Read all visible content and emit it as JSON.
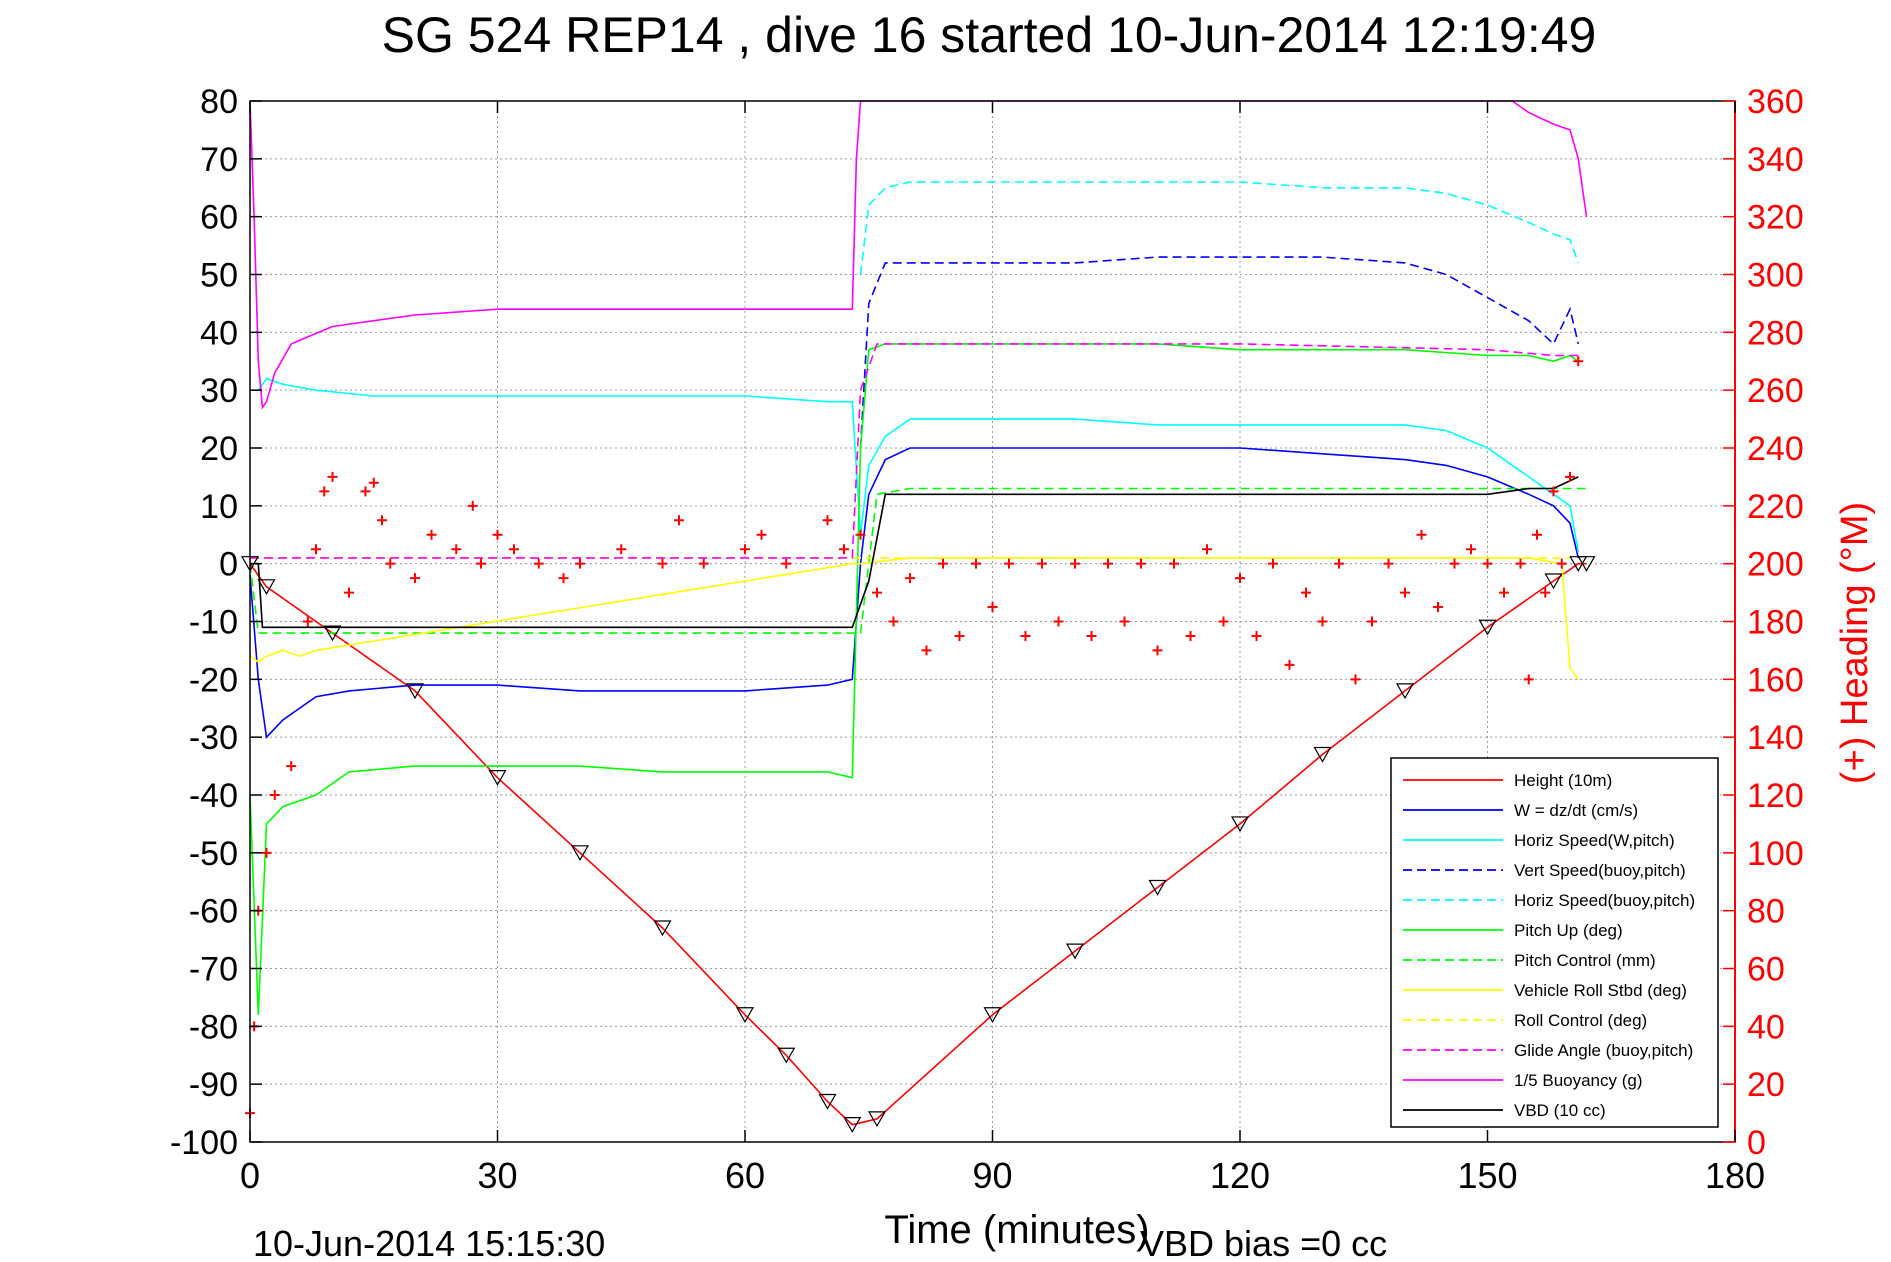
{
  "chart_data": {
    "type": "line",
    "title": "SG 524   REP14  , dive 16 started 10-Jun-2014 12:19:49",
    "xlabel": "Time (minutes)",
    "ylabel_right": "(+) Heading (°M)",
    "footer_left": "10-Jun-2014 15:15:30",
    "footer_right": "VBD bias =0 cc",
    "xlim": [
      0,
      180
    ],
    "ylim": [
      -100,
      80
    ],
    "ylim_right": [
      0,
      360
    ],
    "x_ticks": [
      "0",
      "30",
      "60",
      "90",
      "120",
      "150",
      "180"
    ],
    "y_ticks": [
      "80",
      "70",
      "60",
      "50",
      "40",
      "30",
      "20",
      "10",
      "0",
      "-10",
      "-20",
      "-30",
      "-40",
      "-50",
      "-60",
      "-70",
      "-80",
      "-90",
      "-100"
    ],
    "y_ticks_right": [
      "360",
      "340",
      "320",
      "300",
      "280",
      "260",
      "240",
      "220",
      "200",
      "180",
      "160",
      "140",
      "120",
      "100",
      "80",
      "60",
      "40",
      "20",
      "0"
    ],
    "grid": true,
    "legend_position": "bottom-right",
    "colors": {
      "red": "#ff0000",
      "blue": "#0000ff",
      "cyan": "#00ffff",
      "green": "#00ff00",
      "yellow": "#ffff00",
      "magenta": "#ff00ff",
      "black": "#000000",
      "grid": "#9a9a9a"
    },
    "series": [
      {
        "name": "Height (10m)",
        "color": "#ff0000",
        "style": "solid",
        "x": [
          0,
          2,
          10,
          20,
          30,
          40,
          50,
          60,
          65,
          70,
          73,
          76,
          90,
          100,
          110,
          120,
          130,
          140,
          150,
          158,
          161,
          162
        ],
        "y": [
          0,
          -4,
          -12,
          -22,
          -37,
          -50,
          -63,
          -78,
          -85,
          -93,
          -97,
          -96,
          -78,
          -67,
          -56,
          -45,
          -33,
          -22,
          -11,
          -3,
          0,
          0
        ]
      },
      {
        "name": "W = dz/dt (cm/s)",
        "color": "#0000ff",
        "style": "solid",
        "x": [
          0,
          1,
          2,
          4,
          8,
          12,
          20,
          30,
          40,
          50,
          60,
          70,
          73,
          74,
          75,
          77,
          80,
          90,
          100,
          110,
          120,
          130,
          140,
          145,
          150,
          155,
          158,
          160,
          161
        ],
        "y": [
          -2,
          -20,
          -30,
          -27,
          -23,
          -22,
          -21,
          -21,
          -22,
          -22,
          -22,
          -21,
          -20,
          0,
          12,
          18,
          20,
          20,
          20,
          20,
          20,
          19,
          18,
          17,
          15,
          12,
          10,
          7,
          1
        ]
      },
      {
        "name": "Horiz Speed(W,pitch)",
        "color": "#00ffff",
        "style": "solid",
        "x": [
          0,
          1,
          2,
          4,
          8,
          15,
          30,
          45,
          60,
          70,
          73,
          74,
          75,
          77,
          80,
          90,
          100,
          110,
          120,
          130,
          140,
          145,
          150,
          155,
          158,
          160,
          161
        ],
        "y": [
          30,
          30,
          32,
          31,
          30,
          29,
          29,
          29,
          29,
          28,
          28,
          5,
          17,
          22,
          25,
          25,
          25,
          24,
          24,
          24,
          24,
          23,
          20,
          15,
          12,
          10,
          2
        ]
      },
      {
        "name": "Vert Speed(buoy,pitch)",
        "color": "#0000ff",
        "style": "dashed",
        "x": [
          74,
          75,
          77,
          80,
          90,
          100,
          110,
          120,
          130,
          140,
          145,
          150,
          155,
          158,
          160,
          161
        ],
        "y": [
          20,
          45,
          52,
          52,
          52,
          52,
          53,
          53,
          53,
          52,
          50,
          46,
          42,
          38,
          44,
          38
        ]
      },
      {
        "name": "Horiz Speed(buoy,pitch)",
        "color": "#00ffff",
        "style": "dashed",
        "x": [
          74,
          75,
          77,
          80,
          90,
          100,
          110,
          120,
          130,
          140,
          145,
          150,
          155,
          158,
          160,
          161
        ],
        "y": [
          50,
          62,
          65,
          66,
          66,
          66,
          66,
          66,
          65,
          65,
          64,
          62,
          59,
          57,
          56,
          52
        ]
      },
      {
        "name": "Pitch Up (deg)",
        "color": "#00ff00",
        "style": "solid",
        "x": [
          0,
          1,
          2,
          4,
          8,
          12,
          20,
          30,
          40,
          50,
          60,
          70,
          73,
          74,
          75,
          77,
          80,
          90,
          100,
          110,
          120,
          130,
          140,
          150,
          155,
          158,
          160,
          161
        ],
        "y": [
          -40,
          -78,
          -45,
          -42,
          -40,
          -36,
          -35,
          -35,
          -35,
          -36,
          -36,
          -36,
          -37,
          20,
          37,
          38,
          38,
          38,
          38,
          38,
          37,
          37,
          37,
          36,
          36,
          35,
          36,
          35
        ]
      },
      {
        "name": "Pitch Control (mm)",
        "color": "#00ff00",
        "style": "dashed",
        "x": [
          0,
          1,
          2,
          30,
          60,
          73,
          74,
          76,
          80,
          100,
          120,
          140,
          150,
          158,
          162
        ],
        "y": [
          0,
          -12,
          -12,
          -12,
          -12,
          -12,
          -12,
          12,
          13,
          13,
          13,
          13,
          13,
          13,
          13
        ]
      },
      {
        "name": "Vehicle Roll Stbd (deg)",
        "color": "#ffff00",
        "style": "solid",
        "x": [
          0,
          1,
          2,
          4,
          6,
          8,
          73,
          74,
          80,
          120,
          155,
          159,
          160,
          161
        ],
        "y": [
          -16,
          -17,
          -16,
          -15,
          -16,
          -15,
          0,
          0,
          1,
          1,
          1,
          0,
          -18,
          -20
        ]
      },
      {
        "name": "Roll Control (deg)",
        "color": "#ffff00",
        "style": "dashed",
        "x": [
          0,
          10,
          20,
          30,
          60,
          73,
          74,
          100,
          120,
          150,
          160
        ],
        "y": [
          1,
          1,
          1,
          1,
          1,
          1,
          1,
          1,
          1,
          1,
          1
        ]
      },
      {
        "name": "Glide Angle (buoy,pitch)",
        "color": "#ff00ff",
        "style": "dashed",
        "x": [
          0,
          30,
          60,
          73,
          74,
          76,
          90,
          120,
          150,
          158,
          161
        ],
        "y": [
          1,
          1,
          1,
          1,
          30,
          38,
          38,
          38,
          37,
          36,
          36
        ]
      },
      {
        "name": "1/5 Buoyancy (g)",
        "color": "#ff00ff",
        "style": "solid",
        "x": [
          0,
          0.5,
          1,
          1.5,
          2,
          3,
          5,
          10,
          20,
          30,
          40,
          50,
          60,
          70,
          73,
          73.5,
          74,
          75,
          153,
          155,
          158,
          160,
          161,
          162
        ],
        "y": [
          80,
          60,
          35,
          27,
          28,
          33,
          38,
          41,
          43,
          44,
          44,
          44,
          44,
          44,
          44,
          70,
          80,
          80,
          80,
          78,
          76,
          75,
          70,
          60
        ]
      },
      {
        "name": "VBD (10 cc)",
        "color": "#000000",
        "style": "solid",
        "x": [
          0,
          1,
          1.5,
          30,
          60,
          73,
          75,
          77,
          100,
          120,
          145,
          150,
          155,
          158,
          161
        ],
        "y": [
          0,
          0,
          -11,
          -11,
          -11,
          -11,
          -3,
          12,
          12,
          12,
          12,
          12,
          13,
          13,
          15
        ]
      },
      {
        "name": "Heading",
        "color": "#ff0000",
        "style": "markers",
        "axis": "right",
        "x": [
          0,
          0.5,
          1,
          2,
          3,
          5,
          7,
          8,
          9,
          10,
          12,
          14,
          15,
          16,
          17,
          20,
          22,
          25,
          27,
          28,
          30,
          32,
          35,
          38,
          40,
          45,
          50,
          52,
          55,
          60,
          62,
          65,
          70,
          72,
          74,
          76,
          78,
          80,
          82,
          84,
          86,
          88,
          90,
          92,
          94,
          96,
          98,
          100,
          102,
          104,
          106,
          108,
          110,
          112,
          114,
          116,
          118,
          120,
          122,
          124,
          126,
          128,
          130,
          132,
          134,
          136,
          138,
          140,
          142,
          144,
          146,
          148,
          150,
          152,
          154,
          155,
          156,
          157,
          158,
          159,
          160,
          161
        ],
        "y": [
          10,
          40,
          80,
          100,
          120,
          130,
          180,
          205,
          225,
          230,
          190,
          225,
          228,
          215,
          200,
          195,
          210,
          205,
          220,
          200,
          210,
          205,
          200,
          195,
          200,
          205,
          200,
          215,
          200,
          205,
          210,
          200,
          215,
          205,
          210,
          190,
          180,
          195,
          170,
          200,
          175,
          200,
          185,
          200,
          175,
          200,
          180,
          200,
          175,
          200,
          180,
          200,
          170,
          200,
          175,
          205,
          180,
          195,
          175,
          200,
          165,
          190,
          180,
          200,
          160,
          180,
          200,
          190,
          210,
          185,
          200,
          205,
          200,
          190,
          200,
          160,
          210,
          190,
          225,
          200,
          230,
          270
        ]
      }
    ]
  }
}
